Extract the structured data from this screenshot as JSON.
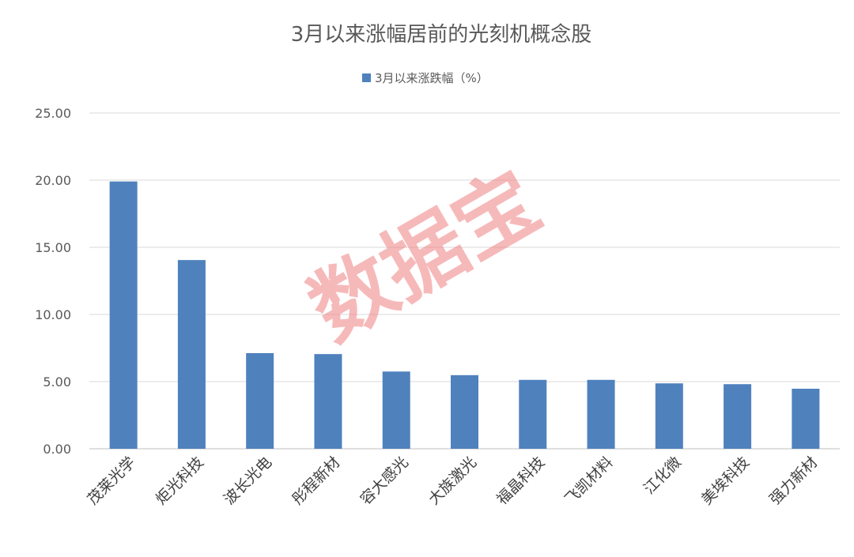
{
  "watermark": "数据宝",
  "chart_data": {
    "type": "bar",
    "title": "3月以来涨幅居前的光刻机概念股",
    "categories": [
      "茂莱光学",
      "炬光科技",
      "波长光电",
      "彤程新材",
      "容大感光",
      "大族激光",
      "福晶科技",
      "飞凯材料",
      "江化微",
      "美埃科技",
      "强力新材"
    ],
    "series": [
      {
        "name": "3月以来涨跌幅（%）",
        "values": [
          19.9,
          14.05,
          7.12,
          7.05,
          5.75,
          5.48,
          5.13,
          5.13,
          4.87,
          4.81,
          4.47
        ],
        "color": "#4f81bd"
      }
    ],
    "xlabel": "",
    "ylabel": "",
    "ylim": [
      0,
      25
    ],
    "yticks": [
      "0.00",
      "5.00",
      "10.00",
      "15.00",
      "20.00",
      "25.00"
    ],
    "grid": true,
    "legend_position": "top"
  }
}
